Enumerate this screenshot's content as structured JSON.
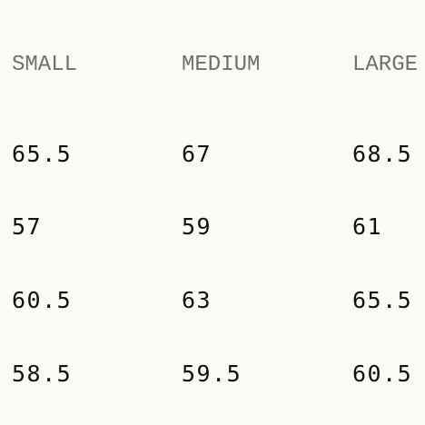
{
  "table": {
    "header": [
      "SMALL",
      "MEDIUM",
      "LARGE"
    ],
    "rows": [
      [
        65.5,
        67,
        68.5
      ],
      [
        57,
        59,
        61
      ],
      [
        60.5,
        63,
        65.5
      ],
      [
        58.5,
        59.5,
        60.5
      ]
    ]
  }
}
